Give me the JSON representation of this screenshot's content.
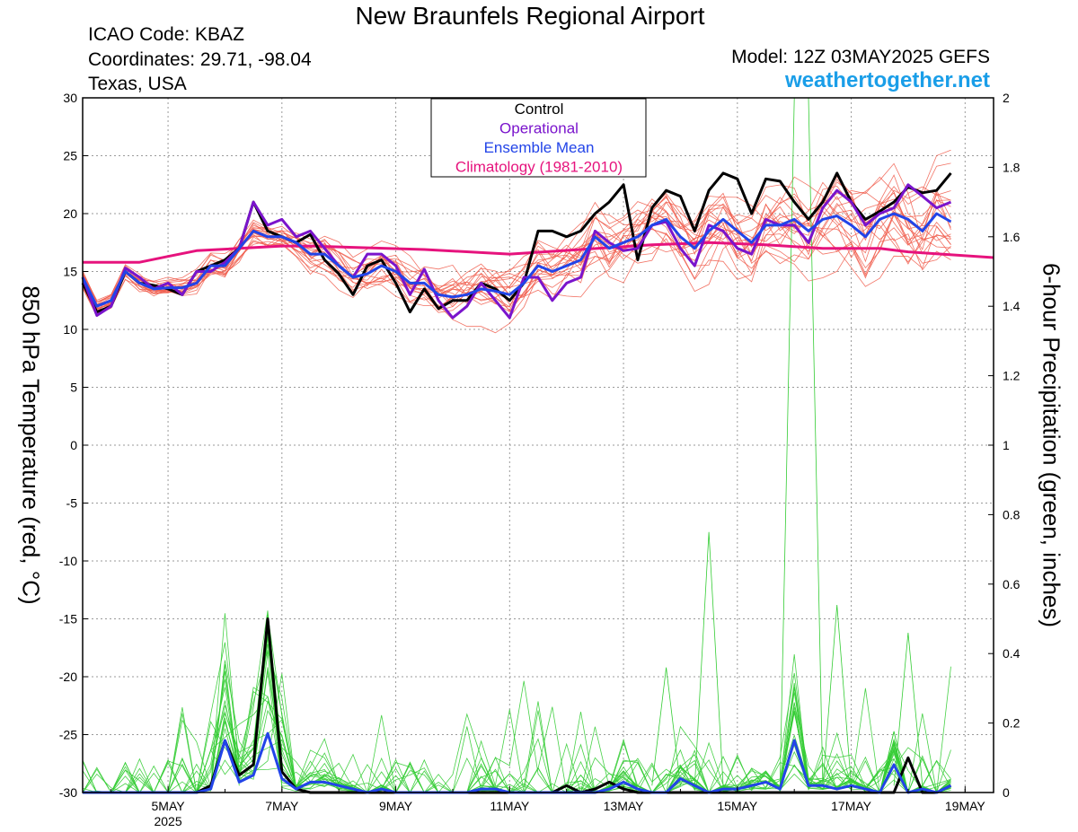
{
  "header": {
    "title": "New Braunfels Regional Airport",
    "icao": "ICAO Code: KBAZ",
    "coords": "Coordinates: 29.71, -98.04",
    "region": "Texas, USA",
    "model": "Model: 12Z 03MAY2025 GEFS",
    "site": "weathertogether.net"
  },
  "colors": {
    "members": "#f05a4a",
    "precip": "#33cc33",
    "control": "#000000",
    "operational": "#7a14cc",
    "mean": "#2244e8",
    "climatology": "#e6137d",
    "site": "#1a9ee8"
  },
  "chart_data": {
    "type": "line",
    "ylabel_left": "850 hPa Temperature (red, °C)",
    "ylabel_right": "6-hour Precipitation (green, inches)",
    "ylim_left": [
      -30,
      30
    ],
    "ylim_right": [
      0,
      2
    ],
    "yticks_left": [
      30,
      25,
      20,
      15,
      10,
      5,
      0,
      -5,
      -10,
      -15,
      -20,
      -25,
      -30
    ],
    "yticks_right": [
      "2",
      "1.8",
      "1.6",
      "1.4",
      "1.2",
      "1",
      "0.8",
      "0.6",
      "0.4",
      "0.2",
      "0"
    ],
    "grid": true,
    "legend_position": "top-center",
    "xlim": [
      "2025-05-03 12Z",
      "2025-05-19 12Z"
    ],
    "x_step": "6h",
    "xticks": [
      {
        "label": "5MAY",
        "sub": "2025",
        "day": 5
      },
      {
        "label": "7MAY",
        "day": 7
      },
      {
        "label": "9MAY",
        "day": 9
      },
      {
        "label": "11MAY",
        "day": 11
      },
      {
        "label": "13MAY",
        "day": 13
      },
      {
        "label": "15MAY",
        "day": 15
      },
      {
        "label": "17MAY",
        "day": 17
      },
      {
        "label": "19MAY",
        "day": 19
      }
    ],
    "legend": [
      "Control",
      "Operational",
      "Ensemble Mean",
      "Climatology (1981-2010)"
    ],
    "series": [
      {
        "name": "Control",
        "axis": "left",
        "values": [
          14,
          11.5,
          12,
          15,
          14,
          13.8,
          13.5,
          13,
          15,
          15.5,
          16,
          17,
          21,
          18.5,
          18,
          17.5,
          18.2,
          16,
          14.8,
          13,
          15.5,
          16,
          14,
          11.5,
          13.5,
          11.8,
          12.5,
          12.5,
          14,
          13.5,
          12.5,
          14,
          18.5,
          18.5,
          18,
          18.5,
          20,
          21,
          22.5,
          16,
          20.5,
          22,
          21.5,
          18.5,
          22,
          23.5,
          23,
          20,
          23,
          22.8,
          21,
          19.5,
          21,
          23.5,
          21,
          19.5,
          20.2,
          21,
          22.3,
          21.8,
          22,
          23.5
        ]
      },
      {
        "name": "Operational",
        "axis": "left",
        "values": [
          14.5,
          11.2,
          12,
          15.3,
          14.5,
          13.5,
          14,
          13,
          15,
          15,
          15.8,
          17,
          21,
          19,
          19.5,
          18,
          18.5,
          17,
          15.5,
          14.5,
          16.5,
          16.5,
          15.5,
          13,
          15.2,
          12.5,
          11,
          12,
          14,
          12.5,
          11,
          14.5,
          14.5,
          12.5,
          14,
          14.5,
          18.5,
          17.5,
          16.8,
          17,
          19,
          19.3,
          17,
          15.5,
          19,
          18.5,
          17,
          16.5,
          19.5,
          19,
          19,
          17.5,
          20.5,
          22,
          21,
          19,
          20,
          20.5,
          22.5,
          21.5,
          20.5,
          21
        ]
      },
      {
        "name": "Ensemble Mean",
        "axis": "left",
        "values": [
          14.5,
          12,
          12.5,
          15,
          14,
          13.5,
          13.6,
          13.6,
          14,
          15.5,
          15.5,
          17,
          18.5,
          18,
          18,
          17.5,
          16.5,
          16.5,
          15.5,
          14.5,
          14.8,
          15.5,
          15,
          14,
          14,
          13,
          12.8,
          13,
          13.5,
          13.3,
          13,
          14,
          15.5,
          15,
          15.5,
          16,
          18,
          17,
          17.5,
          18,
          19,
          19.5,
          18,
          17,
          18.5,
          19.5,
          18.5,
          17.5,
          19,
          19,
          19.5,
          18.5,
          19.5,
          19.8,
          19,
          18,
          19.5,
          20,
          19.5,
          18.5,
          20,
          19.3
        ]
      },
      {
        "name": "Climatology (1981-2010)",
        "axis": "left",
        "x": [
          0,
          4,
          6,
          8,
          14,
          16,
          24,
          30,
          40,
          44,
          48,
          52,
          56,
          58,
          64
        ],
        "values": [
          15.8,
          15.8,
          16.3,
          16.8,
          17.2,
          17.2,
          16.9,
          16.5,
          17.3,
          17.5,
          17.3,
          17.0,
          17.0,
          16.7,
          16.2
        ]
      },
      {
        "name": "Control",
        "axis": "right",
        "values": [
          0,
          0,
          0,
          0,
          0,
          0,
          0,
          0,
          0,
          0.02,
          0.15,
          0.05,
          0.08,
          0.5,
          0.06,
          0.01,
          0,
          0,
          0,
          0,
          0,
          0,
          0,
          0,
          0,
          0,
          0,
          0,
          0,
          0,
          0,
          0,
          0,
          0,
          0.02,
          0,
          0.01,
          0.03,
          0.01,
          0,
          0,
          0,
          0,
          0,
          0,
          0,
          0,
          0,
          0,
          0,
          0,
          0,
          0,
          0,
          0,
          0,
          0,
          0,
          0.1,
          0,
          0,
          0.02
        ]
      },
      {
        "name": "Ensemble Mean",
        "axis": "right",
        "values": [
          0,
          0,
          0,
          0,
          0,
          0,
          0,
          0,
          0,
          0.01,
          0.15,
          0.03,
          0.05,
          0.17,
          0.04,
          0.01,
          0.03,
          0.03,
          0.02,
          0.01,
          0,
          0.01,
          0,
          0,
          0,
          0,
          0,
          0,
          0.01,
          0.01,
          0,
          0,
          0,
          0,
          0,
          0,
          0,
          0.01,
          0.03,
          0.01,
          0,
          0,
          0.04,
          0.02,
          0,
          0.01,
          0.01,
          0.02,
          0.03,
          0.01,
          0.15,
          0.02,
          0.02,
          0.01,
          0.02,
          0.01,
          0,
          0.08,
          0,
          0.01,
          0,
          0.02
        ]
      }
    ]
  }
}
